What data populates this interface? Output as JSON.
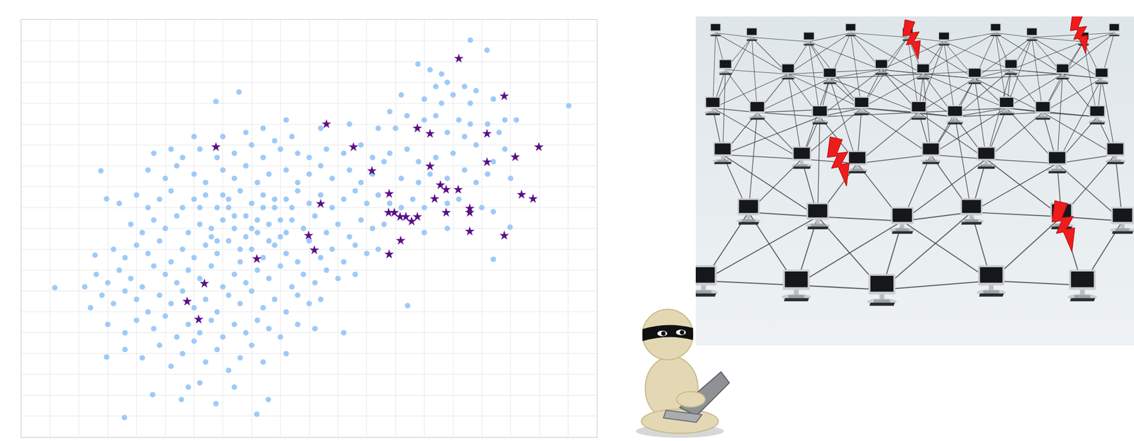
{
  "chart_data": {
    "type": "scatter",
    "xlim": [
      0,
      100
    ],
    "ylim": [
      0,
      100
    ],
    "xticks": [
      0,
      5,
      10,
      15,
      20,
      25,
      30,
      35,
      40,
      45,
      50,
      55,
      60,
      65,
      70,
      75,
      80,
      85,
      90,
      95,
      100
    ],
    "yticks": [
      0,
      5,
      10,
      15,
      20,
      25,
      30,
      35,
      40,
      45,
      50,
      55,
      60,
      65,
      70,
      75,
      80,
      85,
      90,
      95,
      100
    ],
    "grid": true,
    "tick_labels": false,
    "series": [
      {
        "color": "#9fcaf7",
        "marker": "circle",
        "x": [
          78,
          80.9,
          68.9,
          71,
          73,
          72,
          74,
          77,
          75,
          79,
          66,
          70,
          73,
          78,
          82,
          84,
          86,
          95.1,
          33.8,
          37.8,
          64,
          67,
          70,
          72,
          76,
          78,
          81,
          83,
          62,
          65,
          74,
          77,
          57,
          52,
          46,
          42,
          47,
          39,
          35,
          30,
          44,
          23,
          26,
          28,
          31,
          34,
          37,
          40,
          42,
          45,
          48,
          50,
          53,
          56,
          59,
          61,
          64,
          67,
          69,
          72,
          75,
          79,
          82,
          84,
          13.8,
          22,
          25,
          27,
          30,
          32,
          35,
          37,
          39,
          41,
          43,
          46,
          48,
          50,
          52,
          54,
          57,
          59,
          61,
          63,
          66,
          69,
          71,
          74,
          77,
          79,
          81,
          85,
          14.8,
          17,
          20,
          22,
          24,
          26,
          28,
          30,
          32,
          34,
          36,
          38,
          40,
          42,
          44,
          46,
          48,
          50,
          52,
          54,
          56,
          58,
          60,
          62,
          64,
          66,
          68,
          70,
          74,
          76,
          80,
          82,
          19,
          21,
          23,
          25,
          27,
          29,
          31,
          33,
          35,
          37,
          39,
          41,
          43,
          45,
          47,
          49,
          51,
          53,
          55,
          57,
          59,
          61,
          63,
          70,
          74,
          84.9,
          12.8,
          16,
          18,
          20,
          22,
          24,
          26,
          28,
          30,
          32,
          34,
          36,
          38,
          40,
          42,
          44,
          46,
          48,
          50,
          52,
          54,
          56,
          58,
          60,
          62,
          82,
          5.8,
          11,
          13,
          15,
          17,
          19,
          21,
          23,
          25,
          27,
          29,
          31,
          33,
          35,
          37,
          39,
          41,
          43,
          45,
          47,
          49,
          51,
          53,
          55,
          58,
          12,
          14,
          16,
          18,
          20,
          22,
          24,
          26,
          28,
          30,
          32,
          34,
          36,
          38,
          40,
          42,
          44,
          46,
          48,
          50,
          52,
          67.1,
          15,
          18,
          20,
          23,
          25,
          27,
          29,
          31,
          33,
          35,
          37,
          39,
          41,
          43,
          45,
          48,
          51,
          56,
          14.8,
          18,
          21,
          24,
          26,
          28,
          30,
          32,
          34,
          36,
          38,
          40,
          42,
          46,
          17.9,
          22.8,
          27.8,
          33.8,
          42.9,
          40.9,
          29,
          31,
          37,
          33,
          36,
          39,
          41,
          44,
          46,
          38,
          35,
          42,
          45,
          40,
          37,
          43,
          47,
          34,
          31
        ],
        "values": [
          95.1,
          92.7,
          89.4,
          88,
          87,
          84,
          85,
          84,
          82,
          83,
          82,
          81,
          80,
          80,
          81,
          76,
          76,
          79.4,
          80.4,
          82.7,
          78,
          77,
          76,
          77,
          76,
          75,
          75,
          73,
          74,
          74,
          73,
          72,
          75,
          74,
          76,
          74,
          72,
          73,
          72,
          72,
          71,
          68,
          69,
          67,
          69,
          67,
          68,
          70,
          67,
          69,
          68,
          67,
          69,
          68,
          70,
          67,
          68,
          69,
          66,
          67,
          68,
          70,
          66,
          69,
          63.8,
          64,
          62,
          65,
          63,
          61,
          64,
          62,
          65,
          61,
          63,
          64,
          61,
          63,
          65,
          62,
          64,
          61,
          63,
          66,
          62,
          61,
          63,
          62,
          64,
          61,
          63,
          62,
          57.1,
          56,
          58,
          55,
          57,
          59,
          55,
          57,
          58,
          55,
          57,
          59,
          56,
          58,
          55,
          57,
          59,
          56,
          58,
          55,
          57,
          59,
          56,
          58,
          56,
          55,
          57,
          55,
          56,
          57,
          55,
          54,
          51,
          49,
          52,
          50,
          53,
          49,
          51,
          48,
          52,
          50,
          53,
          49,
          51,
          48,
          52,
          50,
          53,
          49,
          51,
          48,
          52,
          50,
          51,
          49,
          50,
          50.3,
          43.6,
          45,
          43,
          46,
          44,
          47,
          42,
          45,
          43,
          46,
          44,
          47,
          42,
          45,
          43,
          46,
          44,
          42,
          47,
          43,
          45,
          42,
          46,
          44,
          45,
          42.6,
          35.8,
          36,
          39,
          37,
          40,
          38,
          36,
          41,
          39,
          37,
          40,
          38,
          41,
          36,
          39,
          37,
          40,
          38,
          41,
          36,
          39,
          37,
          40,
          38,
          39,
          31,
          34,
          32,
          35,
          33,
          30,
          34,
          32,
          35,
          31,
          33,
          30,
          34,
          32,
          35,
          31,
          33,
          30,
          34,
          32,
          33,
          31.5,
          27,
          25,
          28,
          26,
          29,
          24,
          27,
          25,
          28,
          24,
          27,
          25,
          28,
          26,
          24,
          27,
          26,
          25,
          19.2,
          21,
          19,
          22,
          17,
          20,
          23,
          18,
          21,
          16,
          19,
          22,
          18,
          20,
          4.7,
          10.2,
          9.0,
          8.0,
          9.0,
          5.5,
          12,
          13,
          12,
          50,
          55,
          48,
          52,
          57,
          49,
          45,
          58,
          55,
          52,
          50,
          53,
          47,
          55,
          47,
          55
        ]
      },
      {
        "color": "#5a0f88",
        "marker": "star",
        "x": [
          76.0,
          83.9,
          53.0,
          57.7,
          33.8,
          68.8,
          71.0,
          80.9,
          89.9,
          85.8,
          80.9,
          60.9,
          71.0,
          63.9,
          73.8,
          75.9,
          72.8,
          71.8,
          86.9,
          88.9,
          52.0,
          63.8,
          64.8,
          65.8,
          66.8,
          67.8,
          68.8,
          73.8,
          77.9,
          77.9,
          83.9,
          77.9,
          65.9,
          63.9,
          49.9,
          50.9,
          40.9,
          31.8,
          28.8,
          30.8
        ],
        "values": [
          90.7,
          81.7,
          75.0,
          69.5,
          69.5,
          74.0,
          72.7,
          72.7,
          69.5,
          67.1,
          65.9,
          63.8,
          64.9,
          58.3,
          59.3,
          59.3,
          60.4,
          57.1,
          58.1,
          57.1,
          55.9,
          53.8,
          53.8,
          52.8,
          52.8,
          51.7,
          52.8,
          53.8,
          54.8,
          53.8,
          48.3,
          49.3,
          47.1,
          43.8,
          48.3,
          44.8,
          42.7,
          36.8,
          32.5,
          28.2
        ]
      }
    ]
  }
}
